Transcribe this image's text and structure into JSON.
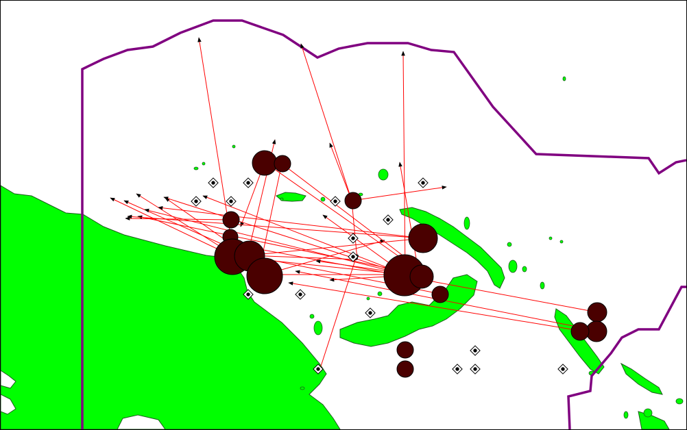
{
  "map": {
    "colors": {
      "sea": "#ffffff",
      "land": "#00ff00",
      "coastline": "#1a5c1a",
      "boundary": "#800080",
      "arrow": "#ff0000",
      "arrowhead": "#000000",
      "event_fill": "#4a0000",
      "station_marker": "#000000"
    },
    "layers": [
      "coastline-land",
      "maritime-boundary",
      "arrows",
      "event-circles",
      "station-markers"
    ],
    "labels": []
  }
}
